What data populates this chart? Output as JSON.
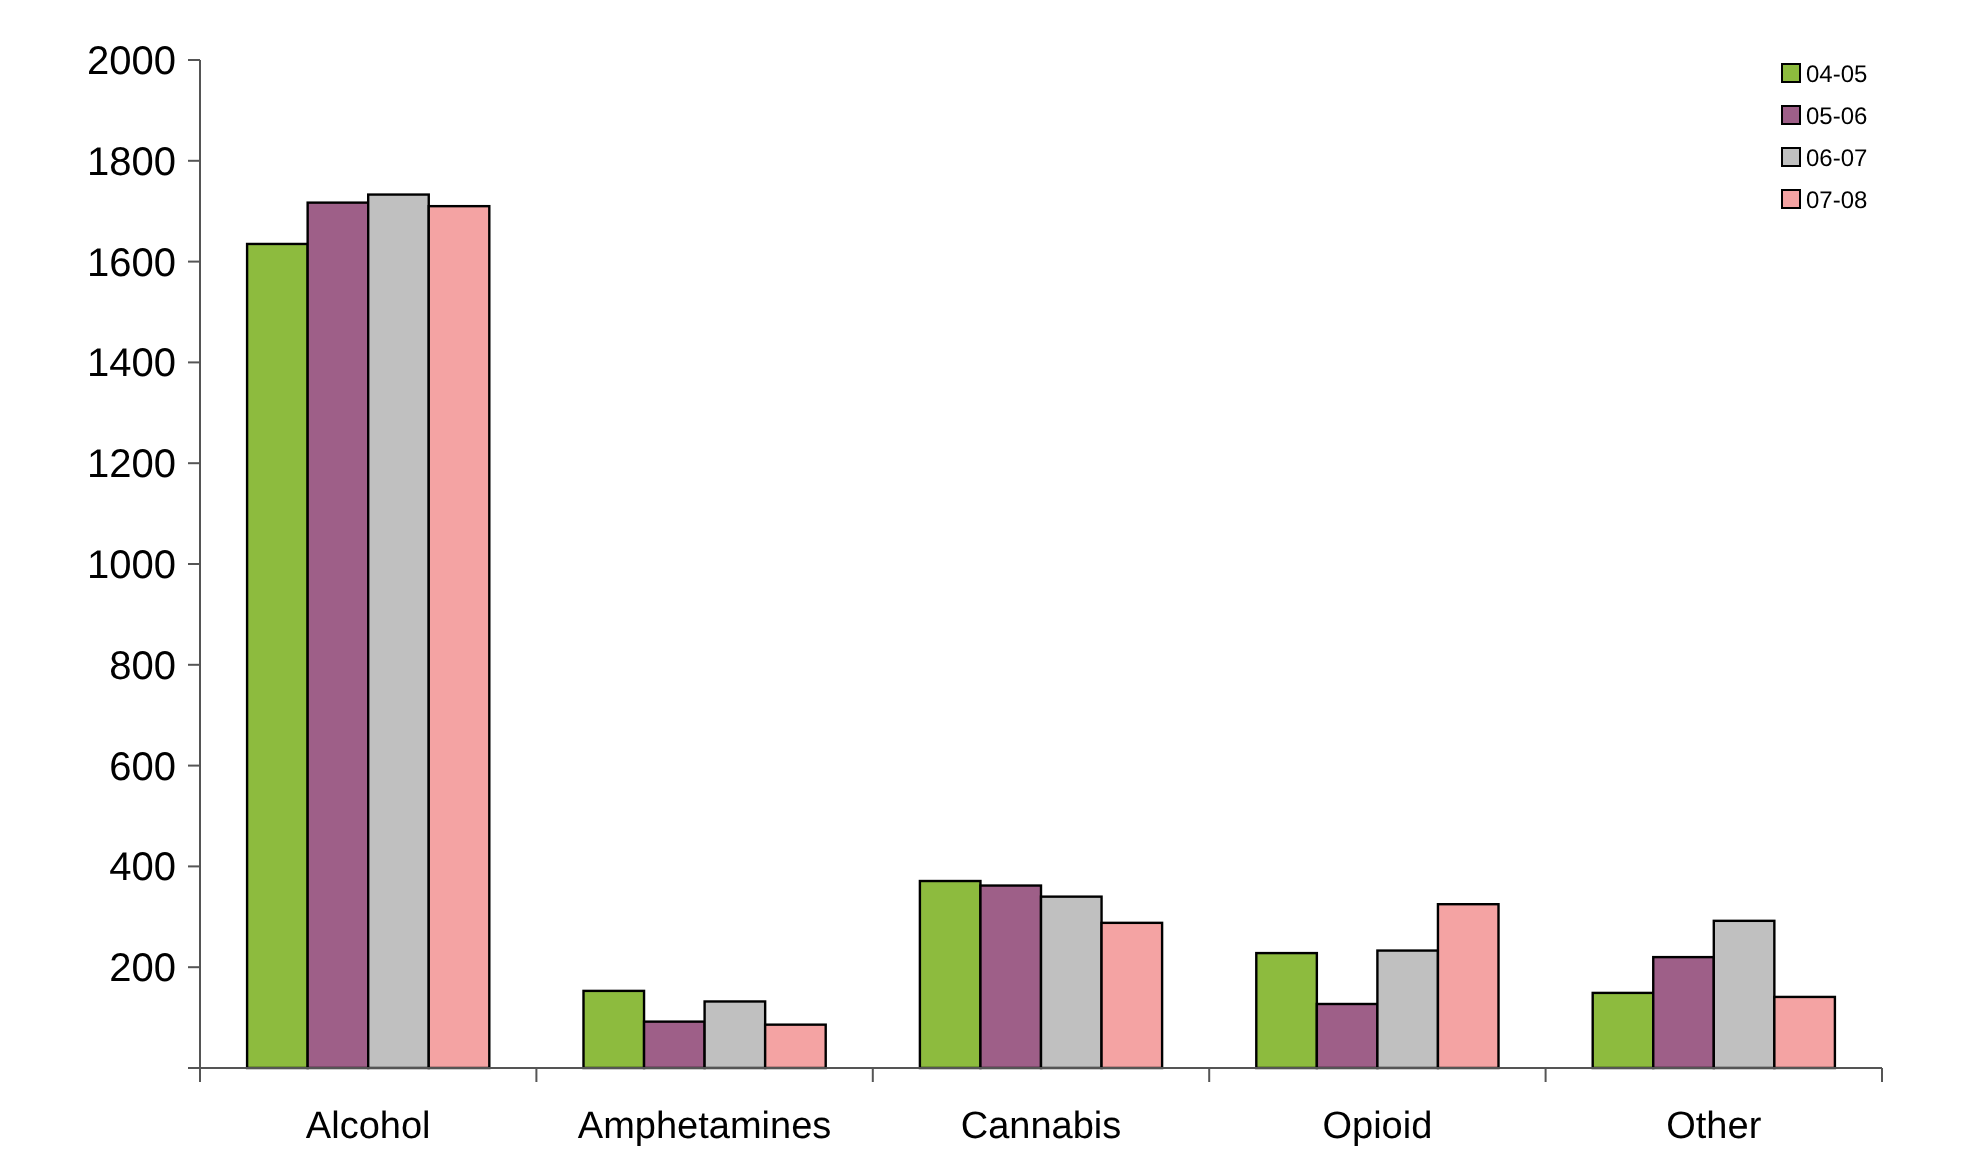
{
  "chart_data": {
    "type": "bar",
    "categories": [
      "Alcohol",
      "Amphetamines",
      "Cannabis",
      "Opioid",
      "Other"
    ],
    "series": [
      {
        "name": "04-05",
        "color": "#8dbb3e",
        "values": [
          1635,
          153,
          371,
          228,
          149
        ]
      },
      {
        "name": "05-06",
        "color": "#9e5f88",
        "values": [
          1717,
          92,
          362,
          127,
          220
        ]
      },
      {
        "name": "06-07",
        "color": "#c0c0c0",
        "values": [
          1733,
          132,
          340,
          233,
          292
        ]
      },
      {
        "name": "07-08",
        "color": "#f4a3a3",
        "values": [
          1710,
          86,
          288,
          325,
          141
        ]
      }
    ],
    "ylim": [
      0,
      2000
    ],
    "yticks": [
      {
        "value": 0,
        "label": null
      },
      200,
      400,
      600,
      800,
      1000,
      1200,
      1400,
      1600,
      1800,
      2000
    ],
    "grid": false,
    "legend": "top right"
  }
}
